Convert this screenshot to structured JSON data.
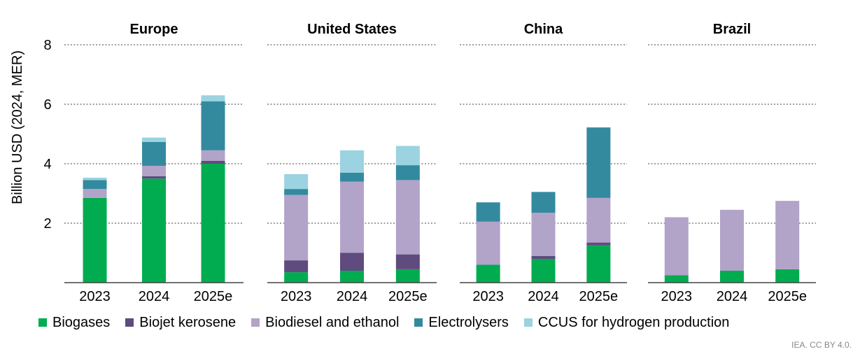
{
  "chart_data": {
    "type": "bar",
    "stacked": true,
    "ylabel": "Billion USD (2024, MER)",
    "ylim": [
      0,
      8
    ],
    "yticks": [
      2,
      4,
      6,
      8
    ],
    "categories": [
      "2023",
      "2024",
      "2025e"
    ],
    "colors": {
      "Biogases": "#00ac4f",
      "Biojet kerosene": "#5f4b7e",
      "Biodiesel and ethanol": "#b2a3c9",
      "Electrolysers": "#338a9f",
      "CCUS for hydrogen production": "#9bd3e0"
    },
    "panels": [
      {
        "title": "Europe",
        "series": [
          {
            "name": "Biogases",
            "values": [
              2.85,
              3.5,
              4.0
            ]
          },
          {
            "name": "Biojet kerosene",
            "values": [
              0.0,
              0.08,
              0.1
            ]
          },
          {
            "name": "Biodiesel and ethanol",
            "values": [
              0.3,
              0.35,
              0.35
            ]
          },
          {
            "name": "Electrolysers",
            "values": [
              0.3,
              0.8,
              1.65
            ]
          },
          {
            "name": "CCUS for hydrogen production",
            "values": [
              0.08,
              0.15,
              0.2
            ]
          }
        ]
      },
      {
        "title": "United States",
        "series": [
          {
            "name": "Biogases",
            "values": [
              0.35,
              0.4,
              0.45
            ]
          },
          {
            "name": "Biojet kerosene",
            "values": [
              0.4,
              0.6,
              0.5
            ]
          },
          {
            "name": "Biodiesel and ethanol",
            "values": [
              2.2,
              2.4,
              2.5
            ]
          },
          {
            "name": "Electrolysers",
            "values": [
              0.2,
              0.3,
              0.5
            ]
          },
          {
            "name": "CCUS for hydrogen production",
            "values": [
              0.5,
              0.75,
              0.65
            ]
          }
        ]
      },
      {
        "title": "China",
        "series": [
          {
            "name": "Biogases",
            "values": [
              0.6,
              0.8,
              1.25
            ]
          },
          {
            "name": "Biojet kerosene",
            "values": [
              0.0,
              0.1,
              0.1
            ]
          },
          {
            "name": "Biodiesel and ethanol",
            "values": [
              1.45,
              1.45,
              1.5
            ]
          },
          {
            "name": "Electrolysers",
            "values": [
              0.65,
              0.7,
              2.37
            ]
          },
          {
            "name": "CCUS for hydrogen production",
            "values": [
              0,
              0,
              0
            ]
          }
        ]
      },
      {
        "title": "Brazil",
        "series": [
          {
            "name": "Biogases",
            "values": [
              0.25,
              0.4,
              0.45
            ]
          },
          {
            "name": "Biojet kerosene",
            "values": [
              0,
              0,
              0
            ]
          },
          {
            "name": "Biodiesel and ethanol",
            "values": [
              1.95,
              2.05,
              2.3
            ]
          },
          {
            "name": "Electrolysers",
            "values": [
              0,
              0,
              0
            ]
          },
          {
            "name": "CCUS for hydrogen production",
            "values": [
              0,
              0,
              0
            ]
          }
        ]
      }
    ]
  },
  "legend": [
    {
      "name": "Biogases",
      "color": "#00ac4f"
    },
    {
      "name": "Biojet kerosene",
      "color": "#5f4b7e"
    },
    {
      "name": "Biodiesel and ethanol",
      "color": "#b2a3c9"
    },
    {
      "name": "Electrolysers",
      "color": "#338a9f"
    },
    {
      "name": "CCUS for hydrogen production",
      "color": "#9bd3e0"
    }
  ],
  "credit": "IEA. CC BY 4.0."
}
